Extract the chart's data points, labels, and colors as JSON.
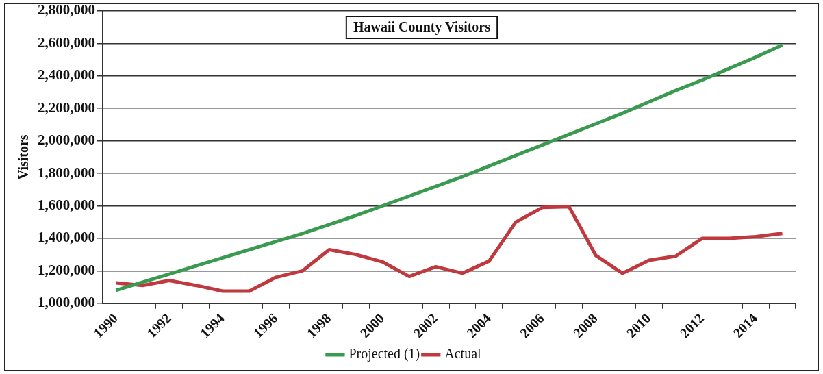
{
  "chart_data": {
    "type": "line",
    "title": "Hawaii County Visitors",
    "ylabel": "Visitors",
    "categories": [
      "1990",
      null,
      "1992",
      null,
      "1994",
      null,
      "1996",
      null,
      "1998",
      null,
      "2000",
      null,
      "2002",
      null,
      "2004",
      null,
      "2006",
      null,
      "2008",
      null,
      "2010",
      null,
      "2012",
      null,
      "2014",
      null
    ],
    "series": [
      {
        "name": "Projected (1)",
        "color": "#3a9a50",
        "values": [
          1080000,
          1130000,
          1180000,
          1230000,
          1280000,
          1330000,
          1380000,
          1430000,
          1485000,
          1540000,
          1600000,
          1660000,
          1720000,
          1780000,
          1845000,
          1910000,
          1975000,
          2040000,
          2105000,
          2170000,
          2240000,
          2310000,
          2375000,
          2445000,
          2515000,
          2590000
        ]
      },
      {
        "name": "Actual",
        "color": "#c0393f",
        "values": [
          1125000,
          1110000,
          1140000,
          1110000,
          1075000,
          1075000,
          1160000,
          1200000,
          1330000,
          1300000,
          1255000,
          1165000,
          1225000,
          1185000,
          1260000,
          1500000,
          1590000,
          1595000,
          1295000,
          1185000,
          1265000,
          1290000,
          1400000,
          1400000,
          1410000,
          1430000
        ]
      }
    ],
    "ylim": [
      1000000,
      2800000
    ],
    "yticks": [
      {
        "value": 1000000,
        "label": "1,000,000"
      },
      {
        "value": 1200000,
        "label": "1,200,000"
      },
      {
        "value": 1400000,
        "label": "1,400,000"
      },
      {
        "value": 1600000,
        "label": "1,600,000"
      },
      {
        "value": 1800000,
        "label": "1,800,000"
      },
      {
        "value": 2000000,
        "label": "2,000,000"
      },
      {
        "value": 2200000,
        "label": "2,200,000"
      },
      {
        "value": 2400000,
        "label": "2,400,000"
      },
      {
        "value": 2600000,
        "label": "2,600,000"
      },
      {
        "value": 2800000,
        "label": "2,800,000"
      }
    ],
    "grid": "y",
    "legend": "bottom",
    "marker": "none",
    "line_style": "solid"
  }
}
